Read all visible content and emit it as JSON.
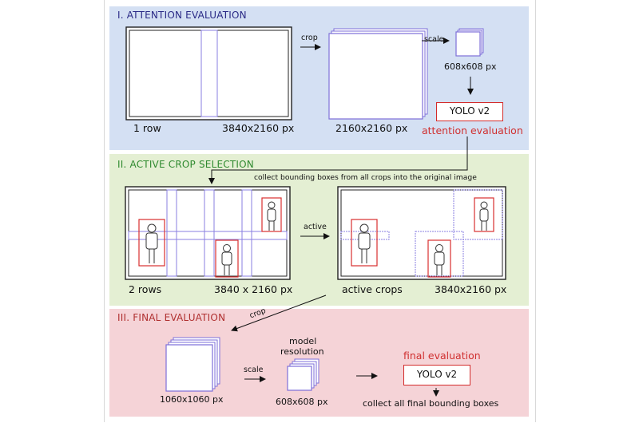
{
  "sections": {
    "attention": {
      "title": "I. ATTENTION EVALUATION",
      "input_rows": "1 row",
      "input_size": "3840x2160 px",
      "crop_arrow": "crop",
      "crop_size": "2160x2160 px",
      "scale_arrow": "scale",
      "scaled_size": "608x608 px",
      "model": "YOLO v2",
      "stage_label": "attention evaluation"
    },
    "active_crop": {
      "title": "II. ACTIVE CROP SELECTION",
      "collect_note": "collect bounding boxes from all crops into the original image",
      "input_rows": "2 rows",
      "input_size": "3840 x 2160 px",
      "active_arrow": "active",
      "output_label": "active crops",
      "output_size": "3840x2160 px"
    },
    "final": {
      "title": "III. FINAL EVALUATION",
      "crop_arrow": "crop",
      "crop_size": "1060x1060 px",
      "scale_arrow": "scale",
      "model_res_line1": "model",
      "model_res_line2": "resolution",
      "scaled_size": "608x608 px",
      "stage_label": "final evaluation",
      "model": "YOLO v2",
      "collect_note": "collect all final bounding boxes"
    }
  },
  "colors": {
    "attention_bg": "#d4e0f3",
    "active_bg": "#e4efd3",
    "final_bg": "#f5d3d7",
    "attention_title": "#2a2a86",
    "active_title": "#2f8a2f",
    "final_title": "#b03030",
    "crop_line": "#8a7fe0",
    "detection": "#d83030"
  }
}
